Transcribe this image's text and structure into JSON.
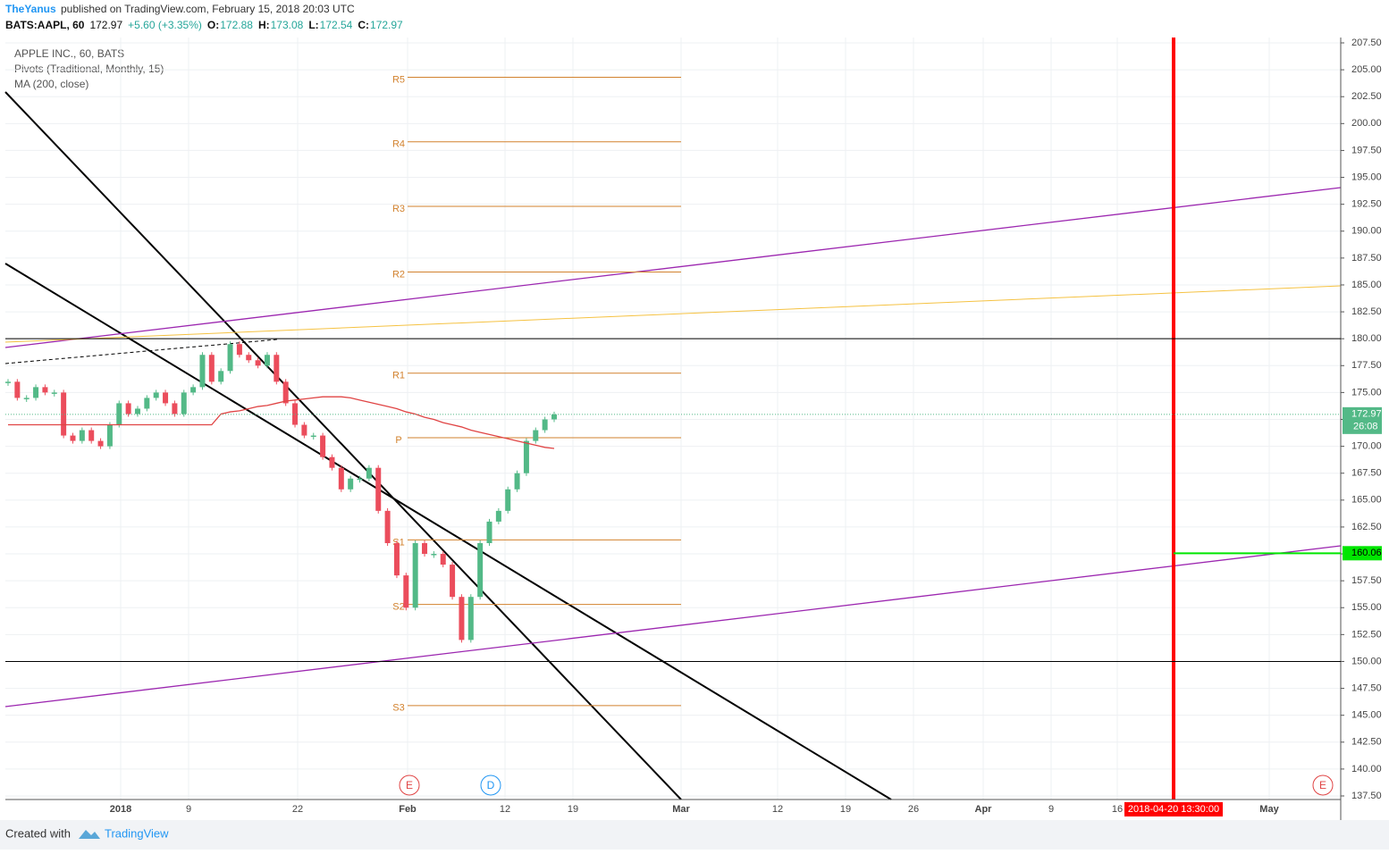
{
  "header": {
    "author": "TheYanus",
    "published": "published on TradingView.com, February 15, 2018 20:03 UTC"
  },
  "quote": {
    "symbol": "BATS:AAPL, 60",
    "last": "172.97",
    "change": "+5.60 (+3.35%)",
    "open_label": "O:",
    "open": "172.88",
    "high_label": "H:",
    "high": "173.08",
    "low_label": "L:",
    "low": "172.54",
    "close_label": "C:",
    "close": "172.97"
  },
  "legend": [
    "APPLE INC., 60, BATS",
    "Pivots (Traditional, Monthly, 15)",
    "MA (200, close)"
  ],
  "chart_data": {
    "type": "candlestick",
    "ylim": [
      137.5,
      207.5
    ],
    "yticks": [
      {
        "value": 137.5,
        "label": "137.50"
      },
      {
        "value": 140,
        "label": "140.00"
      },
      {
        "value": 142.5,
        "label": "142.50"
      },
      {
        "value": 145,
        "label": "145.00"
      },
      {
        "value": 147.5,
        "label": "147.50"
      },
      {
        "value": 150,
        "label": "150.00"
      },
      {
        "value": 152.5,
        "label": "152.50"
      },
      {
        "value": 155,
        "label": "155.00"
      },
      {
        "value": 157.5,
        "label": "157.50"
      },
      {
        "value": 160,
        "label": "160.00"
      },
      {
        "value": 162.5,
        "label": "162.50"
      },
      {
        "value": 165,
        "label": "165.00"
      },
      {
        "value": 167.5,
        "label": "167.50"
      },
      {
        "value": 170,
        "label": "170.00"
      },
      {
        "value": 172.5,
        "label": "172.50"
      },
      {
        "value": 175,
        "label": "175.00"
      },
      {
        "value": 177.5,
        "label": "177.50"
      },
      {
        "value": 180,
        "label": "180.00"
      },
      {
        "value": 182.5,
        "label": "182.50"
      },
      {
        "value": 185,
        "label": "185.00"
      },
      {
        "value": 187.5,
        "label": "187.50"
      },
      {
        "value": 190,
        "label": "190.00"
      },
      {
        "value": 192.5,
        "label": "192.50"
      },
      {
        "value": 195,
        "label": "195.00"
      },
      {
        "value": 197.5,
        "label": "197.50"
      },
      {
        "value": 200,
        "label": "200.00"
      },
      {
        "value": 202.5,
        "label": "202.50"
      },
      {
        "value": 205,
        "label": "205.00"
      },
      {
        "value": 207.5,
        "label": "207.50"
      }
    ],
    "xtick_labels": [
      "2018",
      "9",
      "22",
      "Feb",
      "12",
      "19",
      "Mar",
      "12",
      "19",
      "26",
      "Apr",
      "9",
      "16",
      "May"
    ],
    "closes": [
      176,
      174.5,
      174.5,
      175.5,
      175,
      175,
      171,
      170.5,
      171.5,
      170.5,
      170,
      172,
      174,
      173,
      173.5,
      174.5,
      175,
      174,
      173,
      175,
      175.5,
      178.5,
      176,
      177,
      179.5,
      178.5,
      178,
      177.5,
      178.5,
      176,
      174,
      172,
      171,
      171,
      169,
      168,
      166,
      167,
      167,
      168,
      164,
      161,
      158,
      155,
      161,
      160,
      160,
      159,
      156,
      152,
      156,
      161,
      163,
      164,
      166,
      167.5,
      170.5,
      171.5,
      172.5,
      172.97
    ],
    "ma": {
      "name": "MA (200, close)",
      "color": "#e04444",
      "values": [
        172,
        172,
        172,
        172,
        172,
        172,
        172,
        172,
        172,
        172,
        172,
        172,
        172,
        172,
        172,
        172,
        172,
        172,
        172,
        172,
        172,
        172,
        172,
        173,
        173.2,
        173.3,
        173.5,
        173.7,
        173.8,
        174,
        174.2,
        174.3,
        174.4,
        174.5,
        174.6,
        174.6,
        174.6,
        174.5,
        174.3,
        174.1,
        173.9,
        173.7,
        173.5,
        173.2,
        173,
        172.7,
        172.5,
        172.2,
        172,
        171.8,
        171.5,
        171.3,
        171.1,
        170.9,
        170.7,
        170.5,
        170.3,
        170.1,
        169.9,
        169.8
      ]
    },
    "pivots": [
      {
        "label": "R5",
        "value": 204.3
      },
      {
        "label": "R4",
        "value": 198.3
      },
      {
        "label": "R3",
        "value": 192.3
      },
      {
        "label": "R2",
        "value": 186.2
      },
      {
        "label": "R1",
        "value": 176.8
      },
      {
        "label": "P",
        "value": 170.8
      },
      {
        "label": "S1",
        "value": 161.3
      },
      {
        "label": "S2",
        "value": 155.3
      },
      {
        "label": "S3",
        "value": 145.9
      }
    ],
    "horizontal_lines": [
      180,
      150
    ],
    "last_price": {
      "label": "172.97",
      "countdown": "26:08"
    },
    "target": {
      "value": 160.06,
      "label": "160.06",
      "date": "2018-04-20 13:30:00"
    },
    "events": [
      "E",
      "D",
      "E"
    ]
  },
  "footer": {
    "created": "Created with",
    "brand": "TradingView"
  }
}
